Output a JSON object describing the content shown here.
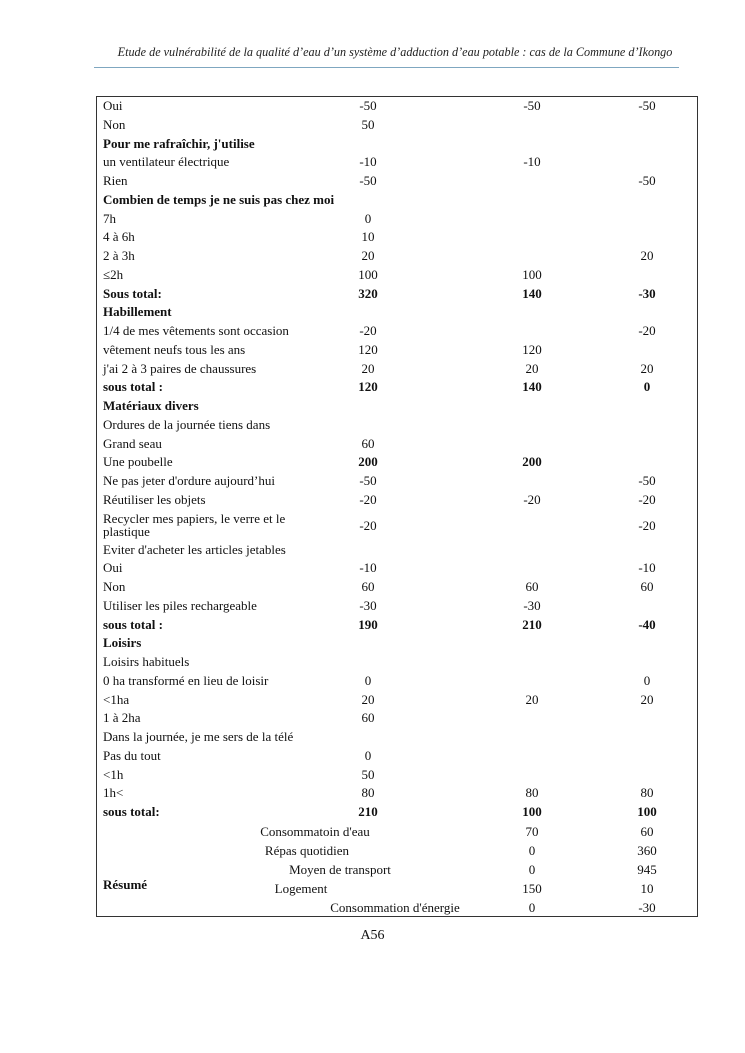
{
  "header": "Etude de vulnérabilité de la qualité d’eau d’un système d’adduction d’eau potable : cas de la Commune d’Ikongo",
  "rows": [
    [
      "Oui",
      "-50",
      "-50",
      "-50",
      ""
    ],
    [
      "Non",
      "50",
      "",
      "",
      ""
    ],
    [
      "Pour me rafraîchir, j'utilise",
      "",
      "",
      "",
      "b"
    ],
    [
      "un ventilateur électrique",
      "-10",
      "-10",
      "",
      ""
    ],
    [
      "Rien",
      "-50",
      "",
      "-50",
      ""
    ],
    [
      "Combien de temps je ne suis pas chez moi",
      "",
      "",
      "",
      "b"
    ],
    [
      "7h",
      "0",
      "",
      "",
      ""
    ],
    [
      "4 à 6h",
      "10",
      "",
      "",
      ""
    ],
    [
      "2 à 3h",
      "20",
      "",
      "20",
      ""
    ],
    [
      "≤2h",
      "100",
      "100",
      "",
      ""
    ],
    [
      "Sous total:",
      "320",
      "140",
      "-30",
      "b"
    ],
    [
      "Habillement",
      "",
      "",
      "",
      "b"
    ],
    [
      "1/4 de mes vêtements sont occasion",
      "-20",
      "",
      "-20",
      ""
    ],
    [
      "vêtement neufs tous les ans",
      "120",
      "120",
      "",
      ""
    ],
    [
      "j'ai 2 à 3 paires de chaussures",
      "20",
      "20",
      "20",
      ""
    ],
    [
      "sous total :",
      "120",
      "140",
      "0",
      "b"
    ],
    [
      "Matériaux divers",
      "",
      "",
      "",
      "b"
    ],
    [
      "Ordures de la journée tiens dans",
      "",
      "",
      "",
      ""
    ],
    [
      "Grand seau",
      "60",
      "",
      "",
      ""
    ],
    [
      "Une poubelle",
      "200",
      "200",
      "",
      "bv"
    ],
    [
      "Ne pas jeter d'ordure aujourd’hui",
      "-50",
      "",
      "-50",
      ""
    ],
    [
      "Réutiliser les objets",
      "-20",
      "-20",
      "-20",
      ""
    ],
    [
      "Recycler mes papiers, le verre et le plastique",
      "-20",
      "",
      "-20",
      "dbl"
    ],
    [
      "Eviter d'acheter les articles jetables",
      "",
      "",
      "",
      ""
    ],
    [
      "Oui",
      "-10",
      "",
      "-10",
      ""
    ],
    [
      "Non",
      "60",
      "60",
      "60",
      ""
    ],
    [
      "Utiliser les piles rechargeable",
      "-30",
      "-30",
      "",
      ""
    ],
    [
      "sous total :",
      "190",
      "210",
      "-40",
      "b"
    ],
    [
      "Loisirs",
      "",
      "",
      "",
      "b"
    ],
    [
      "Loisirs habituels",
      "",
      "",
      "",
      ""
    ],
    [
      "0 ha transformé en lieu de loisir",
      "0",
      "",
      "0",
      ""
    ],
    [
      "<1ha",
      "20",
      "20",
      "20",
      ""
    ],
    [
      "1 à 2ha",
      "60",
      "",
      "",
      ""
    ],
    [
      "Dans la journée, je me sers de la télé",
      "",
      "",
      "",
      ""
    ],
    [
      "Pas du tout",
      "0",
      "",
      "",
      ""
    ],
    [
      "<1h",
      "50",
      "",
      "",
      ""
    ],
    [
      "1h<",
      "80",
      "80",
      "80",
      ""
    ],
    [
      "sous total:",
      "210",
      "100",
      "100",
      "b"
    ]
  ],
  "summary": {
    "label": "Résumé",
    "rows": [
      [
        "Consommatoin d'eau",
        "70",
        "60"
      ],
      [
        "Répas quotidien",
        "0",
        "360"
      ],
      [
        "Moyen de transport",
        "0",
        "945"
      ],
      [
        "Logement",
        "150",
        "10"
      ],
      [
        "Consommation d'énergie",
        "0",
        "-30"
      ]
    ]
  },
  "page_number": "A56"
}
